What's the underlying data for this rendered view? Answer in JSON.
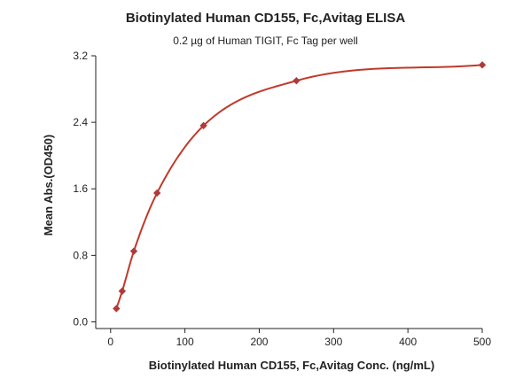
{
  "chart_data": {
    "type": "scatter",
    "title": "Biotinylated Human CD155, Fc,Avitag ELISA",
    "subtitle": "0.2 µg of Human TIGIT, Fc Tag per well",
    "xlabel": "Biotinylated Human CD155, Fc,Avitag Conc. (ng/mL)",
    "ylabel": "Mean Abs.(OD450)",
    "xlim": [
      -20,
      500
    ],
    "ylim": [
      -0.08,
      3.2
    ],
    "xticks": [
      0,
      100,
      200,
      300,
      400,
      500
    ],
    "yticks": [
      0.0,
      0.8,
      1.6,
      2.4,
      3.2
    ],
    "ytick_labels": [
      "0.0",
      "0.8",
      "1.6",
      "2.4",
      "3.2"
    ],
    "grid": false,
    "legend": "none",
    "series": [
      {
        "marker": "diamond",
        "color": "#b03a3a",
        "x": [
          7.8,
          15.6,
          31.25,
          62.5,
          125,
          250,
          500
        ],
        "y": [
          0.16,
          0.37,
          0.85,
          1.55,
          2.36,
          2.9,
          3.09
        ]
      }
    ],
    "fit": {
      "type": "curve",
      "color": "#c0392b"
    }
  }
}
